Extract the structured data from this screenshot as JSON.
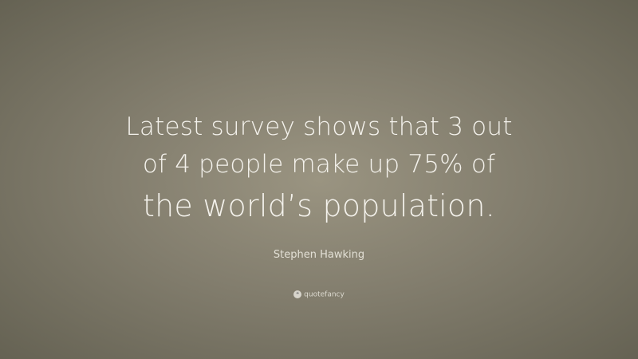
{
  "quote": {
    "lines": [
      "Latest survey shows that 3 out",
      "of 4 people make up 75% of",
      "the world’s population."
    ]
  },
  "author": "Stephen Hawking",
  "brand": {
    "name": "quotefancy",
    "icon": "quote-marks-icon"
  },
  "colors": {
    "background": "#837e6e",
    "text": "#f4f2ec"
  }
}
